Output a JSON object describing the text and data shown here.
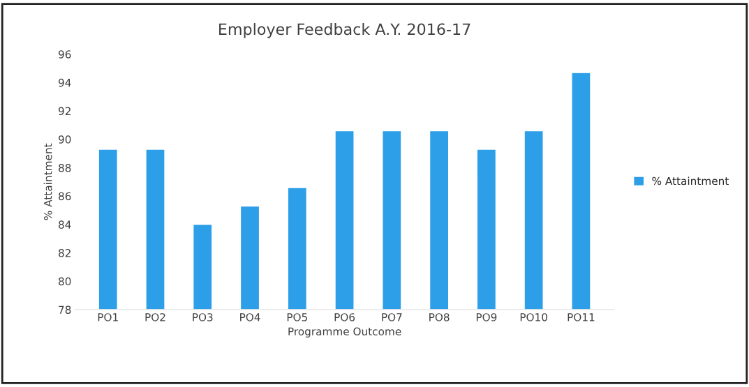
{
  "chart_data": {
    "type": "bar",
    "title": "Employer Feedback A.Y. 2016-17",
    "xlabel": "Programme Outcome",
    "ylabel": "% Attaintment",
    "categories": [
      "PO1",
      "PO2",
      "PO3",
      "PO4",
      "PO5",
      "PO6",
      "PO7",
      "PO8",
      "PO9",
      "PO10",
      "PO11"
    ],
    "series": [
      {
        "name": "% Attaintment",
        "color": "#2d9ee8",
        "values": [
          89.3,
          89.3,
          84.0,
          85.3,
          86.6,
          90.6,
          90.6,
          90.6,
          89.3,
          90.6,
          94.7
        ]
      }
    ],
    "ylim": [
      78,
      96
    ],
    "yticks": [
      78,
      80,
      82,
      84,
      86,
      88,
      90,
      92,
      94,
      96
    ],
    "grid": false,
    "legend": "right"
  }
}
